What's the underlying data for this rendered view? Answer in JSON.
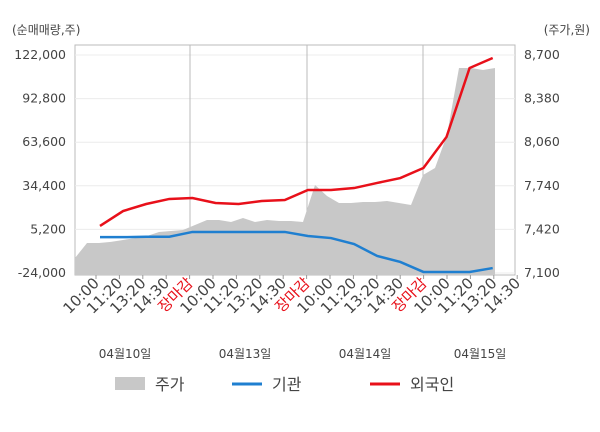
{
  "chart_data": {
    "type": "line",
    "ylabel": "(순매매량,주)",
    "y2label": "(주가,원)",
    "ylim": [
      -24000,
      122000
    ],
    "yticks": [
      {
        "value": 122000,
        "label": "122,000"
      },
      {
        "value": 92800,
        "label": "92,800"
      },
      {
        "value": 63600,
        "label": "63,600"
      },
      {
        "value": 34400,
        "label": "34,400"
      },
      {
        "value": 5200,
        "label": "5,200"
      },
      {
        "value": -24000,
        "label": "-24,000"
      }
    ],
    "y2lim": [
      7100,
      8700
    ],
    "y2ticks": [
      {
        "value": 8700,
        "label": "8,700"
      },
      {
        "value": 8380,
        "label": "8,380"
      },
      {
        "value": 8060,
        "label": "8,060"
      },
      {
        "value": 7740,
        "label": "7,740"
      },
      {
        "value": 7420,
        "label": "7,420"
      },
      {
        "value": 7100,
        "label": "7,100"
      }
    ],
    "x_labels": [
      "10:00",
      "11:20",
      "13:20",
      "14:30",
      "장마감",
      "10:00",
      "11:20",
      "13:20",
      "14:30",
      "장마감",
      "10:00",
      "11:20",
      "13:20",
      "14:30",
      "장마감",
      "10:00",
      "11:20",
      "13:20",
      "14:30"
    ],
    "date_labels": [
      "04월10일",
      "04월13일",
      "04월14일",
      "04월15일"
    ],
    "grid": true,
    "series": [
      {
        "name": "주가",
        "color": "#c8c8c8",
        "axis": "y2",
        "kind": "area",
        "values": [
          7210,
          7320,
          7320,
          7328,
          7342,
          7357,
          7372,
          7401,
          7408,
          7416,
          7452,
          7489,
          7489,
          7474,
          7504,
          7474,
          7489,
          7482,
          7482,
          7474,
          7746,
          7665,
          7614,
          7614,
          7621,
          7621,
          7628,
          7614,
          7599,
          7819,
          7871,
          8113,
          8605,
          8605,
          8590,
          8605
        ]
      },
      {
        "name": "기관",
        "color": "#1f7fd0",
        "kind": "line",
        "values": [
          0,
          0,
          300,
          300,
          3500,
          3500,
          3500,
          3500,
          3500,
          800,
          -600,
          -4600,
          -12600,
          -16600,
          -23300,
          -23300,
          -23300,
          -20700
        ]
      },
      {
        "name": "외국인",
        "color": "#e8101a",
        "kind": "line",
        "values": [
          7500,
          17500,
          22200,
          25600,
          26200,
          22900,
          22200,
          24200,
          24900,
          31600,
          31600,
          32900,
          36300,
          39600,
          46300,
          67100,
          113300,
          120000
        ]
      }
    ]
  }
}
